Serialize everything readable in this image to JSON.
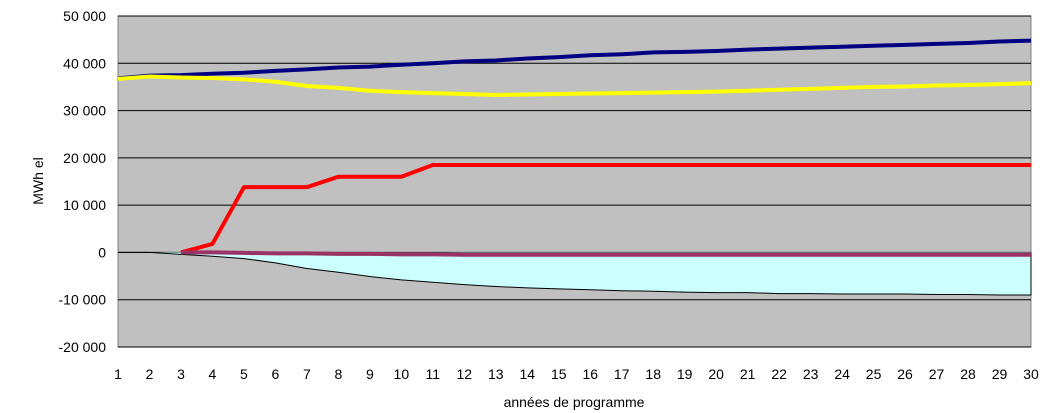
{
  "chart_data": {
    "type": "line",
    "xlabel": "années de programme",
    "ylabel": "MWh el",
    "x": [
      1,
      2,
      3,
      4,
      5,
      6,
      7,
      8,
      9,
      10,
      11,
      12,
      13,
      14,
      15,
      16,
      17,
      18,
      19,
      20,
      21,
      22,
      23,
      24,
      25,
      26,
      27,
      28,
      29,
      30
    ],
    "xtick_labels": [
      "1",
      "2",
      "3",
      "4",
      "5",
      "6",
      "7",
      "8",
      "9",
      "10",
      "11",
      "12",
      "13",
      "14",
      "15",
      "16",
      "17",
      "18",
      "19",
      "20",
      "21",
      "22",
      "23",
      "24",
      "25",
      "26",
      "27",
      "28",
      "29",
      "30"
    ],
    "ylim": [
      -20000,
      50000
    ],
    "yticks": [
      50000,
      40000,
      30000,
      20000,
      10000,
      0,
      -10000,
      -20000
    ],
    "ytick_labels": [
      "50 000",
      "40 000",
      "30 000",
      "20 000",
      "10 000",
      "0",
      "-10 000",
      "-20 000"
    ],
    "grid": "horizontal",
    "plot_background": "#c0c0c0",
    "series": [
      {
        "color": "#000080",
        "kind": "line",
        "values": [
          36800,
          37400,
          37500,
          37800,
          38000,
          38400,
          38700,
          39100,
          39300,
          39700,
          40000,
          40400,
          40600,
          41000,
          41300,
          41700,
          41900,
          42300,
          42400,
          42600,
          42900,
          43100,
          43300,
          43500,
          43700,
          43900,
          44100,
          44300,
          44600,
          44800
        ]
      },
      {
        "color": "#ffff00",
        "kind": "line",
        "values": [
          36700,
          37200,
          37000,
          36900,
          36600,
          36100,
          35200,
          34800,
          34200,
          33900,
          33700,
          33500,
          33300,
          33400,
          33500,
          33600,
          33700,
          33800,
          33900,
          34000,
          34200,
          34400,
          34600,
          34800,
          35000,
          35100,
          35300,
          35400,
          35600,
          35800
        ]
      },
      {
        "color": "#ff0000",
        "kind": "line",
        "values": [
          null,
          null,
          0,
          1800,
          13800,
          13800,
          13800,
          16000,
          16000,
          16000,
          18500,
          18500,
          18500,
          18500,
          18500,
          18500,
          18500,
          18500,
          18500,
          18500,
          18500,
          18500,
          18500,
          18500,
          18500,
          18500,
          18500,
          18500,
          18500,
          18500
        ]
      },
      {
        "color": "#ccffff",
        "kind": "area",
        "values": [
          0,
          0,
          -400,
          -800,
          -1300,
          -2200,
          -3400,
          -4200,
          -5100,
          -5800,
          -6300,
          -6800,
          -7200,
          -7500,
          -7700,
          -7900,
          -8100,
          -8200,
          -8400,
          -8500,
          -8500,
          -8700,
          -8700,
          -8800,
          -8800,
          -8800,
          -8900,
          -8900,
          -9000,
          -9000
        ]
      },
      {
        "color": "#993366",
        "kind": "line",
        "values": [
          null,
          null,
          0,
          0,
          -100,
          -200,
          -200,
          -300,
          -300,
          -400,
          -400,
          -500,
          -500,
          -500,
          -500,
          -500,
          -500,
          -500,
          -500,
          -500,
          -500,
          -500,
          -500,
          -500,
          -500,
          -500,
          -500,
          -500,
          -500,
          -500
        ]
      }
    ]
  }
}
